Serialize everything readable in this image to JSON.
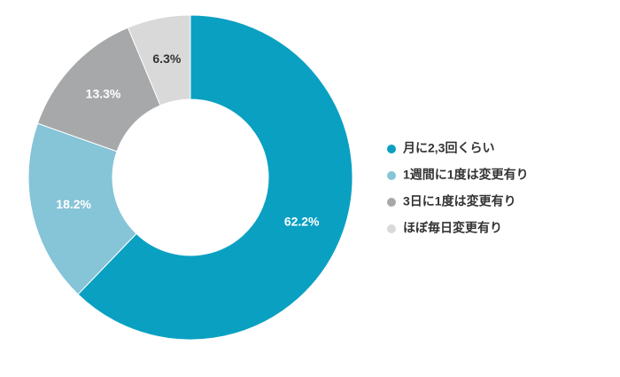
{
  "chart_data": {
    "type": "pie",
    "categories": [
      "月に2,3回くらい",
      "1週間に1度は変更有り",
      "3日に1度は変更有り",
      "ほぼ毎日変更有り"
    ],
    "values": [
      62.2,
      18.2,
      13.3,
      6.3
    ],
    "value_labels": [
      "62.2%",
      "18.2%",
      "13.3%",
      "6.3%"
    ],
    "colors": [
      "#0aa0c2",
      "#86c4d7",
      "#a6a8a9",
      "#d9d9d9"
    ],
    "label_colors": [
      "#ffffff",
      "#ffffff",
      "#ffffff",
      "#333333"
    ],
    "legend": "right"
  }
}
